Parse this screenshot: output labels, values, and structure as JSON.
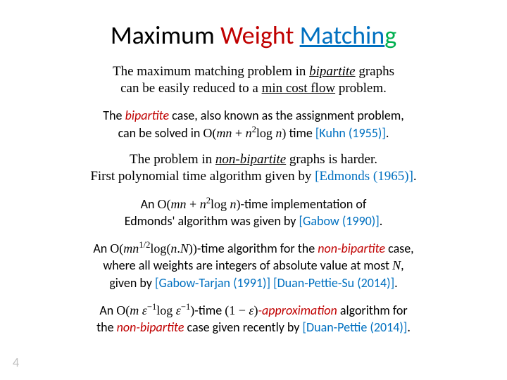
{
  "title": {
    "w1": "Maximum",
    "w2": "Weight",
    "w3": "Matchin",
    "w4": "g",
    "color_w1": "#000000",
    "color_w2": "#c00000",
    "color_w3": "#0070c0",
    "color_w4": "#00b050",
    "fontsize": 36
  },
  "para1": {
    "l1a": "The maximum matching problem in ",
    "l1b": "bipartite",
    "l1c": " graphs",
    "l2a": "can be easily reduced to a ",
    "l2b": "min cost flow",
    "l2c": " problem.",
    "font": "Times New Roman",
    "fontsize": 19
  },
  "block1": {
    "a": "The ",
    "b": "bipartite",
    "c": " case, also known as the assignment problem,",
    "d": "can be solved in ",
    "formula": "O(mn + n²log n)",
    "e": " time ",
    "ref": "[Kuhn (1955)]",
    "period": ".",
    "fontsize": 18,
    "ref_color": "#0070c0",
    "term_color": "#c00000"
  },
  "para2": {
    "l1a": "The problem in ",
    "l1b": "non-bipartite",
    "l1c": " graphs is harder.",
    "l2a": "First polynomial time algorithm given by ",
    "l2ref": "[Edmonds (1965)]",
    "l2b": ".",
    "font": "Times New Roman",
    "fontsize": 19
  },
  "block2": {
    "a": "An ",
    "formula": "O(mn + n²log n)",
    "b": "-time implementation of",
    "c": "Edmonds' algorithm was given by ",
    "ref": "[Gabow (1990)]",
    "period": ".",
    "fontsize": 18
  },
  "block3": {
    "a": "An ",
    "formula": "O(mn^{1/2} log(n.N))",
    "b": "-time algorithm for the ",
    "term": "non-bipartite",
    "c": " case,",
    "d": "where all weights are integers of absolute value at most ",
    "N": "N",
    "e": ",",
    "f": "given by ",
    "ref1": "[Gabow-Tarjan (1991)]",
    "ref2": "[Duan-Pettie-Su (2014)]",
    "period": ".",
    "fontsize": 18
  },
  "block4": {
    "a": "An ",
    "formula1": "O(m ε⁻¹ log ε⁻¹)",
    "b": "-time ",
    "formula2": "(1 − ε)",
    "c": "-approximation",
    "d": " algorithm for",
    "e": "the ",
    "term": "non-bipartite",
    "f": " case given recently by ",
    "ref": "[Duan-Pettie (2014)]",
    "period": ".",
    "fontsize": 18
  },
  "page_number": "4",
  "colors": {
    "background": "#ffffff",
    "text": "#000000",
    "red": "#c00000",
    "blue": "#0070c0",
    "green": "#00b050",
    "pagenum": "#bfbfbf"
  }
}
